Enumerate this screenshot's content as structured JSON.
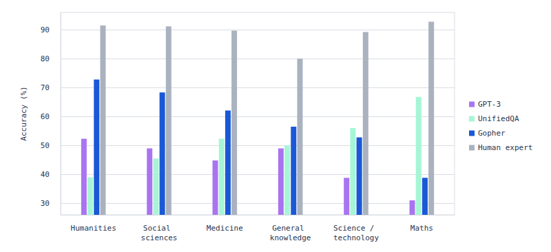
{
  "chart_data": {
    "type": "bar",
    "y_label": "Accuracy (%)",
    "categories": [
      "Humanities",
      "Social sciences",
      "Medicine",
      "General knowledge",
      "Science / technology",
      "Maths"
    ],
    "series": [
      {
        "name": "GPT-3",
        "color": "#a974f0",
        "values": [
          52.3,
          49.0,
          44.8,
          49.0,
          38.8,
          31.0
        ]
      },
      {
        "name": "UnifiedQA",
        "color": "#a6f6d6",
        "values": [
          39.0,
          45.5,
          52.3,
          50.0,
          56.0,
          66.8
        ]
      },
      {
        "name": "Gopher",
        "color": "#1a58d6",
        "values": [
          72.8,
          68.3,
          62.1,
          56.5,
          52.8,
          38.8
        ]
      },
      {
        "name": "Human expert",
        "color": "#a9b2be",
        "values": [
          91.5,
          91.2,
          89.7,
          80.0,
          89.2,
          92.8
        ]
      }
    ],
    "ylim": [
      26,
      96
    ],
    "yticks": [
      30,
      40,
      50,
      60,
      70,
      80,
      90
    ],
    "grid": true,
    "legend": "right"
  }
}
